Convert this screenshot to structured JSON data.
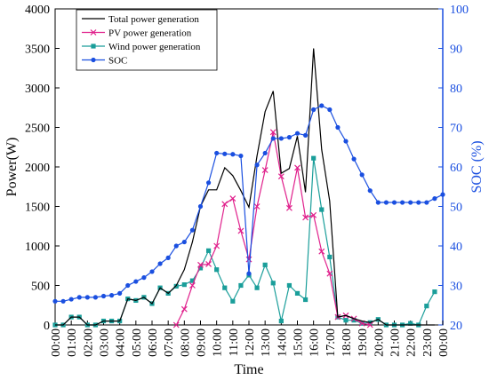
{
  "chart_data": {
    "type": "line",
    "xlabel": "Time",
    "ylabel_left": "Power(W)",
    "ylabel_right": "SOC (%)",
    "ylim_left": [
      0,
      4000
    ],
    "ylim_right": [
      20,
      100
    ],
    "yticks_left": [
      0,
      500,
      1000,
      1500,
      2000,
      2500,
      3000,
      3500,
      4000
    ],
    "yticks_right": [
      20,
      30,
      40,
      50,
      60,
      70,
      80,
      90,
      100
    ],
    "x_tick_labels": [
      "00:00",
      "01:00",
      "02:00",
      "03:00",
      "04:00",
      "05:00",
      "06:00",
      "07:00",
      "08:00",
      "09:00",
      "10:00",
      "11:00",
      "12:00",
      "13:00",
      "14:00",
      "15:00",
      "16:00",
      "17:00",
      "18:00",
      "19:00",
      "20:00",
      "21:00",
      "22:00",
      "23:00",
      "00:00"
    ],
    "legend_position": "top-left",
    "grid": false,
    "series": [
      {
        "name": "Total power generation",
        "axis": "left",
        "color": "#000000",
        "marker": "none",
        "x": [
          0,
          0.5,
          1,
          1.5,
          2,
          2.5,
          3,
          3.5,
          4,
          4.5,
          5,
          5.5,
          6,
          6.5,
          7,
          7.5,
          8,
          8.5,
          9,
          9.5,
          10,
          10.5,
          11,
          11.5,
          12,
          12.5,
          13,
          13.5,
          14,
          14.5,
          15,
          15.5,
          16,
          16.5,
          17,
          17.5,
          18,
          18.5,
          19,
          19.5,
          20,
          20.5,
          21,
          21.5,
          22,
          22.5,
          23,
          23.5
        ],
        "values": [
          0,
          0,
          100,
          100,
          0,
          0,
          50,
          50,
          50,
          330,
          310,
          350,
          270,
          470,
          400,
          500,
          700,
          1050,
          1500,
          1710,
          1710,
          1990,
          1890,
          1700,
          1490,
          2140,
          2700,
          2960,
          1920,
          1980,
          2390,
          1680,
          3500,
          2220,
          1570,
          100,
          120,
          80,
          50,
          30,
          70,
          0,
          0,
          0,
          0,
          0,
          0,
          0
        ]
      },
      {
        "name": "PV power generation",
        "axis": "left",
        "color": "#e0208c",
        "marker": "x",
        "x": [
          7.5,
          8,
          8.5,
          9,
          9.5,
          10,
          10.5,
          11,
          11.5,
          12,
          12.5,
          13,
          13.5,
          14,
          14.5,
          15,
          15.5,
          16,
          16.5,
          17,
          17.5,
          18,
          18.5,
          19,
          19.5
        ],
        "values": [
          0,
          200,
          500,
          760,
          770,
          1000,
          1530,
          1600,
          1190,
          830,
          1500,
          1960,
          2440,
          1880,
          1480,
          1990,
          1360,
          1390,
          930,
          650,
          100,
          120,
          80,
          20,
          0
        ]
      },
      {
        "name": "Wind power generation",
        "axis": "left",
        "color": "#1a9e9a",
        "marker": "square",
        "x": [
          0,
          0.5,
          1,
          1.5,
          2,
          2.5,
          3,
          3.5,
          4,
          4.5,
          5,
          5.5,
          6,
          6.5,
          7,
          7.5,
          8,
          8.5,
          9,
          9.5,
          10,
          10.5,
          11,
          11.5,
          12,
          12.5,
          13,
          13.5,
          14,
          14.5,
          15,
          15.5,
          16,
          16.5,
          17,
          17.5,
          18,
          18.5,
          19,
          19.5,
          20,
          20.5,
          21,
          21.5,
          22,
          22.5,
          23,
          23.5
        ],
        "values": [
          0,
          0,
          100,
          100,
          0,
          0,
          50,
          50,
          50,
          330,
          310,
          350,
          270,
          470,
          400,
          490,
          510,
          560,
          720,
          940,
          700,
          470,
          300,
          500,
          630,
          470,
          760,
          530,
          50,
          500,
          400,
          320,
          2110,
          1460,
          860,
          100,
          60,
          60,
          20,
          30,
          70,
          0,
          0,
          0,
          20,
          0,
          240,
          420
        ]
      },
      {
        "name": "SOC",
        "axis": "right",
        "color": "#1a4fe0",
        "marker": "circle",
        "x": [
          0,
          0.5,
          1,
          1.5,
          2,
          2.5,
          3,
          3.5,
          4,
          4.5,
          5,
          5.5,
          6,
          6.5,
          7,
          7.5,
          8,
          8.5,
          9,
          9.5,
          10,
          10.5,
          11,
          11.5,
          12,
          12.5,
          13,
          13.5,
          14,
          14.5,
          15,
          15.5,
          16,
          16.5,
          17,
          17.5,
          18,
          18.5,
          19,
          19.5,
          20,
          20.5,
          21,
          21.5,
          22,
          22.5,
          23,
          23.5,
          24
        ],
        "values": [
          26,
          26,
          26.5,
          27,
          27,
          27,
          27.3,
          27.5,
          28,
          30,
          31,
          32,
          33.5,
          35.5,
          37,
          40,
          41,
          44,
          50,
          56,
          63.5,
          63.3,
          63.2,
          62.8,
          33,
          60.5,
          63.5,
          67.2,
          67.2,
          67.5,
          68.5,
          68,
          74.5,
          75.5,
          74.5,
          70,
          66.5,
          62,
          58,
          54,
          51,
          51,
          51,
          51,
          51,
          51,
          51,
          52,
          53
        ]
      }
    ]
  }
}
